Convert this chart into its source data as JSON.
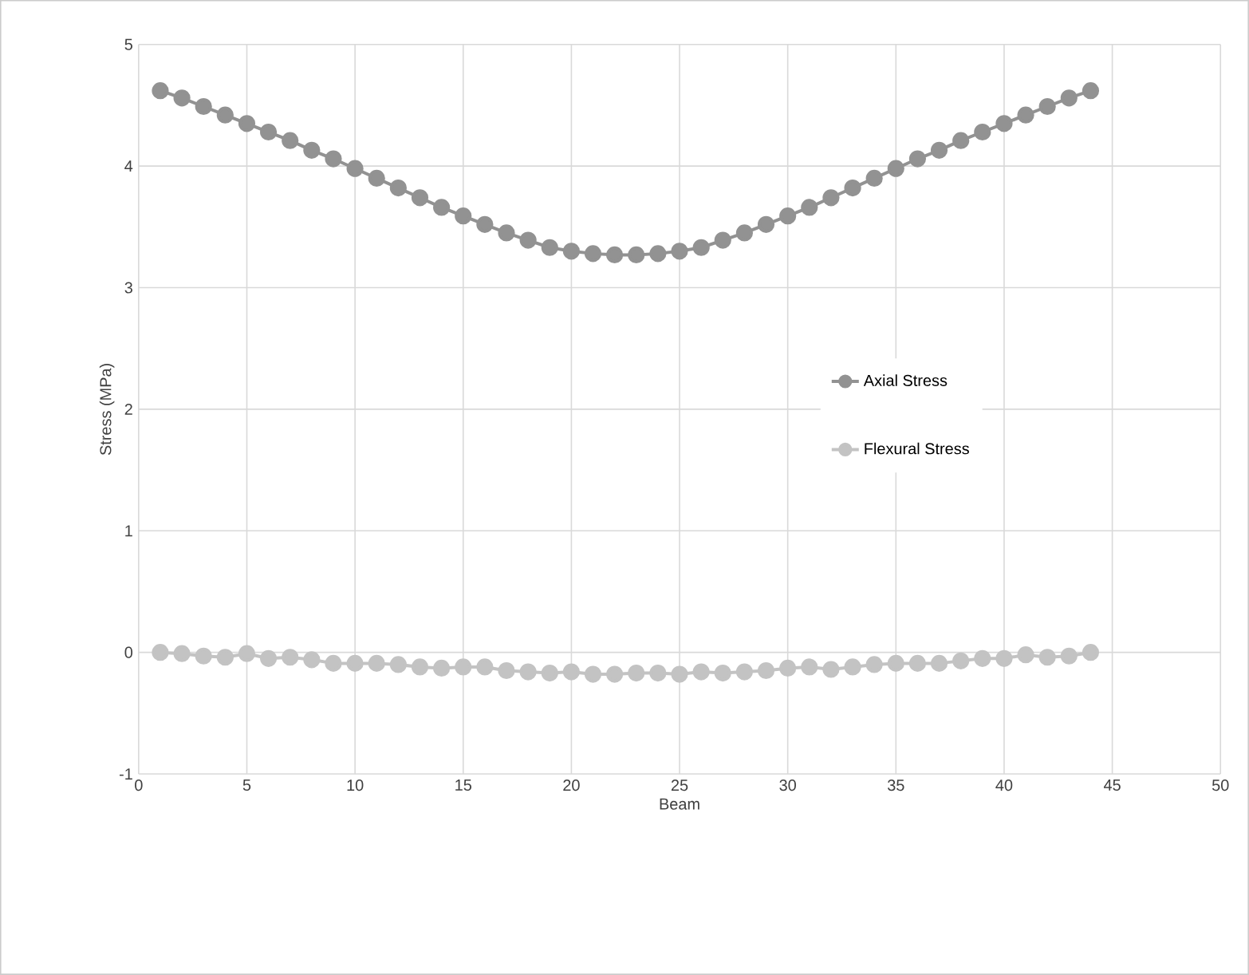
{
  "chart_data": {
    "type": "line",
    "xlabel": "Beam",
    "ylabel": "Stress (MPa)",
    "xlim": [
      0,
      50
    ],
    "xticks": [
      0,
      5,
      10,
      15,
      20,
      25,
      30,
      35,
      40,
      45,
      50
    ],
    "ylim": [
      -1,
      5
    ],
    "yticks": [
      -1,
      0,
      1,
      2,
      3,
      4,
      5
    ],
    "x": [
      1,
      2,
      3,
      4,
      5,
      6,
      7,
      8,
      9,
      10,
      11,
      12,
      13,
      14,
      15,
      16,
      17,
      18,
      19,
      20,
      21,
      22,
      23,
      24,
      25,
      26,
      27,
      28,
      29,
      30,
      31,
      32,
      33,
      34,
      35,
      36,
      37,
      38,
      39,
      40,
      41,
      42,
      43,
      44
    ],
    "series": [
      {
        "name": "Axial Stress",
        "color": "#929292",
        "values": [
          4.62,
          4.56,
          4.49,
          4.42,
          4.35,
          4.28,
          4.21,
          4.13,
          4.06,
          3.98,
          3.9,
          3.82,
          3.74,
          3.66,
          3.59,
          3.52,
          3.45,
          3.39,
          3.33,
          3.3,
          3.28,
          3.27,
          3.27,
          3.28,
          3.3,
          3.33,
          3.39,
          3.45,
          3.52,
          3.59,
          3.66,
          3.74,
          3.82,
          3.9,
          3.98,
          4.06,
          4.13,
          4.21,
          4.28,
          4.35,
          4.42,
          4.49,
          4.56,
          4.62
        ]
      },
      {
        "name": "Flexural Stress",
        "color": "#c3c3c3",
        "values": [
          0.0,
          -0.01,
          -0.03,
          -0.04,
          -0.01,
          -0.05,
          -0.04,
          -0.06,
          -0.09,
          -0.09,
          -0.09,
          -0.1,
          -0.12,
          -0.13,
          -0.12,
          -0.12,
          -0.15,
          -0.16,
          -0.17,
          -0.16,
          -0.18,
          -0.18,
          -0.17,
          -0.17,
          -0.18,
          -0.16,
          -0.17,
          -0.16,
          -0.15,
          -0.13,
          -0.12,
          -0.14,
          -0.12,
          -0.1,
          -0.09,
          -0.09,
          -0.09,
          -0.07,
          -0.05,
          -0.05,
          -0.02,
          -0.04,
          -0.03,
          0.0
        ]
      }
    ],
    "marker": "circle",
    "line_style": "solid",
    "grid": true,
    "legend": "right"
  }
}
